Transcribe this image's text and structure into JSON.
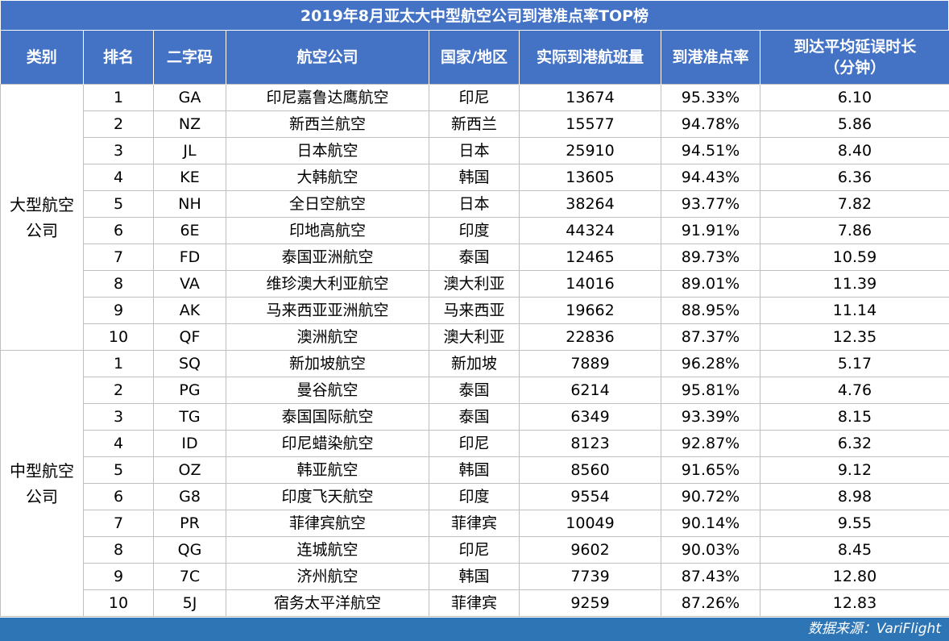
{
  "title": "2019年8月亚太大中型航空公司到港准点率TOP榜",
  "headers": {
    "category": "类别",
    "rank": "排名",
    "code": "二字码",
    "airline": "航空公司",
    "country": "国家/地区",
    "flights": "实际到港航班量",
    "otp": "到港准点率",
    "delay_line1": "到达平均延误时长",
    "delay_line2": "（分钟）"
  },
  "groups": [
    {
      "category_line1": "大型航空",
      "category_line2": "公司",
      "rows": [
        {
          "rank": "1",
          "code": "GA",
          "airline": "印尼嘉鲁达鹰航空",
          "country": "印尼",
          "flights": "13674",
          "otp": "95.33%",
          "delay": "6.10"
        },
        {
          "rank": "2",
          "code": "NZ",
          "airline": "新西兰航空",
          "country": "新西兰",
          "flights": "15577",
          "otp": "94.78%",
          "delay": "5.86"
        },
        {
          "rank": "3",
          "code": "JL",
          "airline": "日本航空",
          "country": "日本",
          "flights": "25910",
          "otp": "94.51%",
          "delay": "8.40"
        },
        {
          "rank": "4",
          "code": "KE",
          "airline": "大韩航空",
          "country": "韩国",
          "flights": "13605",
          "otp": "94.43%",
          "delay": "6.36"
        },
        {
          "rank": "5",
          "code": "NH",
          "airline": "全日空航空",
          "country": "日本",
          "flights": "38264",
          "otp": "93.77%",
          "delay": "7.82"
        },
        {
          "rank": "6",
          "code": "6E",
          "airline": "印地高航空",
          "country": "印度",
          "flights": "44324",
          "otp": "91.91%",
          "delay": "7.86"
        },
        {
          "rank": "7",
          "code": "FD",
          "airline": "泰国亚洲航空",
          "country": "泰国",
          "flights": "12465",
          "otp": "89.73%",
          "delay": "10.59"
        },
        {
          "rank": "8",
          "code": "VA",
          "airline": "维珍澳大利亚航空",
          "country": "澳大利亚",
          "flights": "14016",
          "otp": "89.01%",
          "delay": "11.39"
        },
        {
          "rank": "9",
          "code": "AK",
          "airline": "马来西亚亚洲航空",
          "country": "马来西亚",
          "flights": "19662",
          "otp": "88.95%",
          "delay": "11.14"
        },
        {
          "rank": "10",
          "code": "QF",
          "airline": "澳洲航空",
          "country": "澳大利亚",
          "flights": "22836",
          "otp": "87.37%",
          "delay": "12.35"
        }
      ]
    },
    {
      "category_line1": "中型航空",
      "category_line2": "公司",
      "rows": [
        {
          "rank": "1",
          "code": "SQ",
          "airline": "新加坡航空",
          "country": "新加坡",
          "flights": "7889",
          "otp": "96.28%",
          "delay": "5.17"
        },
        {
          "rank": "2",
          "code": "PG",
          "airline": "曼谷航空",
          "country": "泰国",
          "flights": "6214",
          "otp": "95.81%",
          "delay": "4.76"
        },
        {
          "rank": "3",
          "code": "TG",
          "airline": "泰国国际航空",
          "country": "泰国",
          "flights": "6349",
          "otp": "93.39%",
          "delay": "8.15"
        },
        {
          "rank": "4",
          "code": "ID",
          "airline": "印尼蜡染航空",
          "country": "印尼",
          "flights": "8123",
          "otp": "92.87%",
          "delay": "6.32"
        },
        {
          "rank": "5",
          "code": "OZ",
          "airline": "韩亚航空",
          "country": "韩国",
          "flights": "8560",
          "otp": "91.65%",
          "delay": "9.12"
        },
        {
          "rank": "6",
          "code": "G8",
          "airline": "印度飞天航空",
          "country": "印度",
          "flights": "9554",
          "otp": "90.72%",
          "delay": "8.98"
        },
        {
          "rank": "7",
          "code": "PR",
          "airline": "菲律宾航空",
          "country": "菲律宾",
          "flights": "10049",
          "otp": "90.14%",
          "delay": "9.55"
        },
        {
          "rank": "8",
          "code": "QG",
          "airline": "连城航空",
          "country": "印尼",
          "flights": "9602",
          "otp": "90.03%",
          "delay": "8.45"
        },
        {
          "rank": "9",
          "code": "7C",
          "airline": "济州航空",
          "country": "韩国",
          "flights": "7739",
          "otp": "87.43%",
          "delay": "12.80"
        },
        {
          "rank": "10",
          "code": "5J",
          "airline": "宿务太平洋航空",
          "country": "菲律宾",
          "flights": "9259",
          "otp": "87.26%",
          "delay": "12.83"
        }
      ]
    }
  ],
  "footer": "数据来源：VariFlight"
}
